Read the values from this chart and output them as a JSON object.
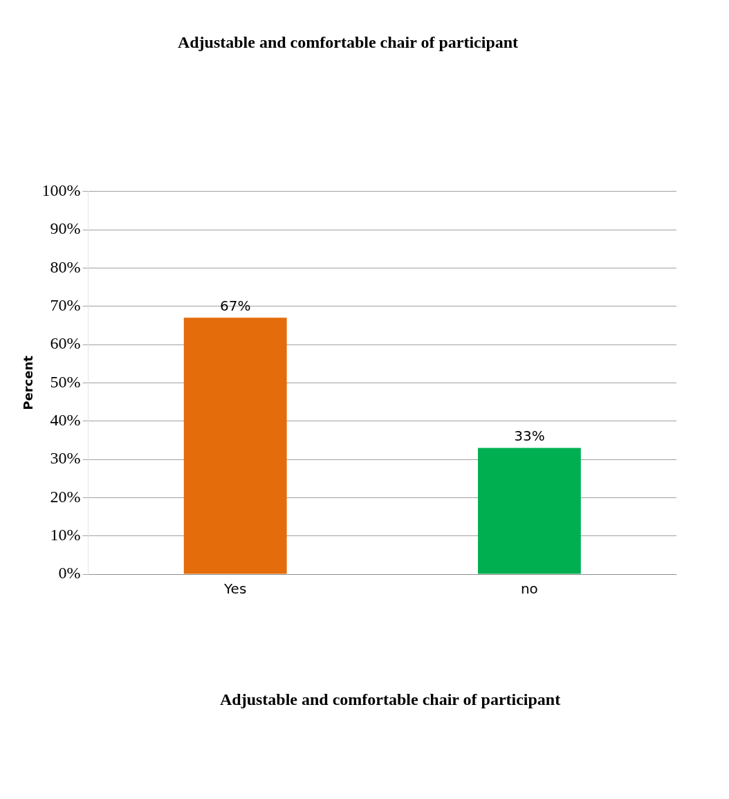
{
  "chart_data": {
    "type": "bar",
    "title": "Adjustable and comfortable chair of participant",
    "annotations": [
      "Adjustable and comfortable chair of participant"
    ],
    "ylabel": "Percent",
    "categories": [
      "Yes",
      "no"
    ],
    "values": [
      67,
      33
    ],
    "colors": [
      "#e46c0a",
      "#00b050"
    ],
    "value_labels": [
      "67%",
      "33%"
    ],
    "ylim": [
      0,
      100
    ],
    "yticks": [
      {
        "value": 0,
        "label": "0%"
      },
      {
        "value": 10,
        "label": "10%"
      },
      {
        "value": 20,
        "label": "20%"
      },
      {
        "value": 30,
        "label": "30%"
      },
      {
        "value": 40,
        "label": "40%"
      },
      {
        "value": 50,
        "label": "50%"
      },
      {
        "value": 60,
        "label": "60%"
      },
      {
        "value": 70,
        "label": "70%"
      },
      {
        "value": 80,
        "label": "80%"
      },
      {
        "value": 90,
        "label": "90%"
      },
      {
        "value": 100,
        "label": "100%"
      }
    ],
    "grid": "y"
  }
}
